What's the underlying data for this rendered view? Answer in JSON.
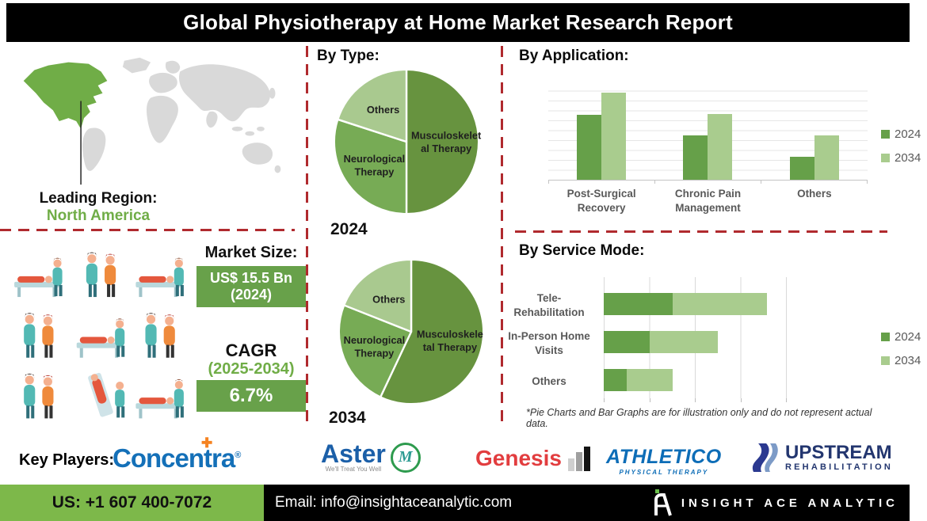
{
  "title": "Global Physiotherapy at Home Market Research Report",
  "leading_region": {
    "label": "Leading Region:",
    "value": "North America"
  },
  "market_size": {
    "label": "Market Size:",
    "value_line1": "US$ 15.5 Bn",
    "value_line2": "(2024)"
  },
  "cagr": {
    "label": "CAGR",
    "period": "(2025-2034)",
    "value": "6.7%"
  },
  "legend": {
    "y2024": "2024",
    "y2034": "2034"
  },
  "colors": {
    "accent_dark_green": "#66a049",
    "accent_light_green": "#a9cc8e",
    "highlight_green": "#70ad47",
    "box_green": "#68a14a",
    "footer_green": "#7db84a",
    "dashed_line_red": "#b02a2e",
    "map_gray": "#d9d9d9",
    "title_bar_black": "#000000"
  },
  "chart_data": [
    {
      "type": "pie",
      "title": "By Type:",
      "year": "2024",
      "slices": [
        {
          "label": "Musculoskeletal Therapy",
          "label_lines": [
            "Musculoskelet",
            "al Therapy"
          ],
          "value": 50,
          "color": "#67933f"
        },
        {
          "label": "Neurological Therapy",
          "label_lines": [
            "Neurological",
            "Therapy"
          ],
          "value": 30,
          "color": "#77ab55"
        },
        {
          "label": "Others",
          "label_lines": [
            "Others"
          ],
          "value": 20,
          "color": "#a9c98f"
        }
      ]
    },
    {
      "type": "pie",
      "title": "By Type:",
      "year": "2034",
      "slices": [
        {
          "label": "Musculoskeletal Therapy",
          "label_lines": [
            "Musculoskele",
            "tal Therapy"
          ],
          "value": 57,
          "color": "#67933f"
        },
        {
          "label": "Neurological Therapy",
          "label_lines": [
            "Neurological",
            "Therapy"
          ],
          "value": 24,
          "color": "#77ab55"
        },
        {
          "label": "Others",
          "label_lines": [
            "Others"
          ],
          "value": 19,
          "color": "#a9c98f"
        }
      ]
    },
    {
      "type": "bar",
      "title": "By Application:",
      "categories": [
        "Post-Surgical Recovery",
        "Chronic Pain Management",
        "Others"
      ],
      "category_lines": [
        [
          "Post-Surgical",
          "Recovery"
        ],
        [
          "Chronic Pain",
          "Management"
        ],
        [
          "Others"
        ]
      ],
      "series": [
        {
          "name": "2024",
          "color": "#66a049",
          "values": [
            66,
            45,
            23
          ]
        },
        {
          "name": "2034",
          "color": "#a9cc8e",
          "values": [
            89,
            67,
            45
          ]
        }
      ],
      "ylim": [
        0,
        100
      ],
      "grid": "horizontal",
      "legend_position": "right"
    },
    {
      "type": "stacked-bar-horizontal",
      "title": "By Service Mode:",
      "categories": [
        "Tele-Rehabilitation",
        "In-Person Home Visits",
        "Others"
      ],
      "category_lines": [
        [
          "Tele-",
          "Rehabilitation"
        ],
        [
          "In-Person Home",
          "Visits"
        ],
        [
          "Others"
        ]
      ],
      "series": [
        {
          "name": "2024",
          "color": "#66a049",
          "values": [
            37.5,
            25,
            12.5
          ]
        },
        {
          "name": "2034",
          "color": "#a9cc8e",
          "values": [
            51.5,
            37.5,
            25
          ]
        }
      ],
      "xlim": [
        0,
        100
      ],
      "grid": "vertical",
      "legend_position": "right",
      "note": "*Pie Charts and Bar Graphs are for illustration only and do not represent actual data."
    }
  ],
  "key_players": {
    "label": "Key Players:",
    "players": [
      {
        "name": "Concentra",
        "mark": "®"
      },
      {
        "name": "Aster",
        "tagline": "We'll Treat You Well"
      },
      {
        "name": "Genesis"
      },
      {
        "name": "ATHLETICO",
        "tagline": "PHYSICAL THERAPY"
      },
      {
        "name": "UPSTREAM",
        "tagline": "REHABILITATION"
      }
    ]
  },
  "footer": {
    "phone": "US: +1 607 400-7072",
    "email": "Email: info@insightaceanalytic.com",
    "brand": "INSIGHT ACE ANALYTIC"
  }
}
